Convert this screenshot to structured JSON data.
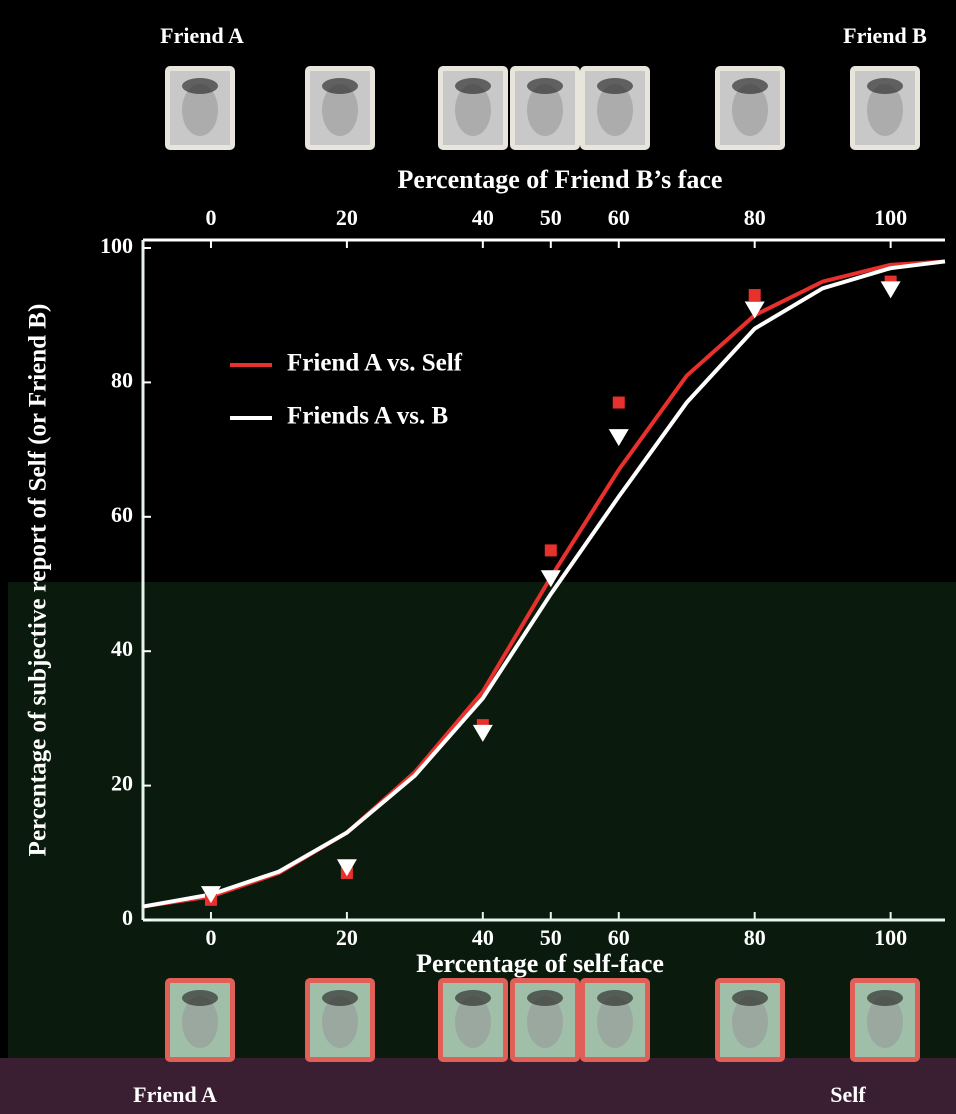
{
  "chart_data": {
    "type": "line",
    "x2label": "Percentage of Friend B’s face",
    "xlabel": "Percentage of self-face",
    "ylabel": "Percentage of subjective report of Self (or Friend B)",
    "top_left_label": "Friend A",
    "top_right_label": "Friend B",
    "bottom_left_label": "Friend A",
    "bottom_right_label": "Self",
    "xlim": [
      -10,
      108
    ],
    "ylim": [
      0,
      100
    ],
    "xticks": [
      0,
      20,
      40,
      50,
      60,
      80,
      100
    ],
    "x2ticks": [
      0,
      20,
      40,
      50,
      60,
      80,
      100
    ],
    "yticks": [
      0,
      20,
      40,
      60,
      80,
      100
    ],
    "series": [
      {
        "name": "Friend A vs. Self",
        "color": "#e8302c",
        "x": [
          -10,
          0,
          10,
          20,
          30,
          40,
          50,
          60,
          70,
          80,
          90,
          100,
          108
        ],
        "values": [
          2,
          3.5,
          7,
          13,
          22,
          34,
          51,
          67,
          81,
          90,
          95,
          97.5,
          98
        ]
      },
      {
        "name": "Friends A vs. B",
        "color": "#ffffff",
        "x": [
          -10,
          0,
          10,
          20,
          30,
          40,
          50,
          60,
          70,
          80,
          90,
          100,
          108
        ],
        "values": [
          2,
          3.8,
          7.2,
          13,
          21.5,
          33,
          48.5,
          63,
          77,
          88,
          94,
          97,
          98
        ]
      }
    ],
    "points_x": [
      0,
      20,
      40,
      50,
      60,
      80,
      100
    ],
    "points": [
      {
        "color": "#e8302c",
        "marker": "square",
        "values": [
          3,
          7,
          29,
          55,
          77,
          93,
          95
        ]
      },
      {
        "color": "#ffffff",
        "marker": "triangle",
        "values": [
          4,
          8,
          28,
          51,
          72,
          91,
          94
        ]
      }
    ]
  }
}
